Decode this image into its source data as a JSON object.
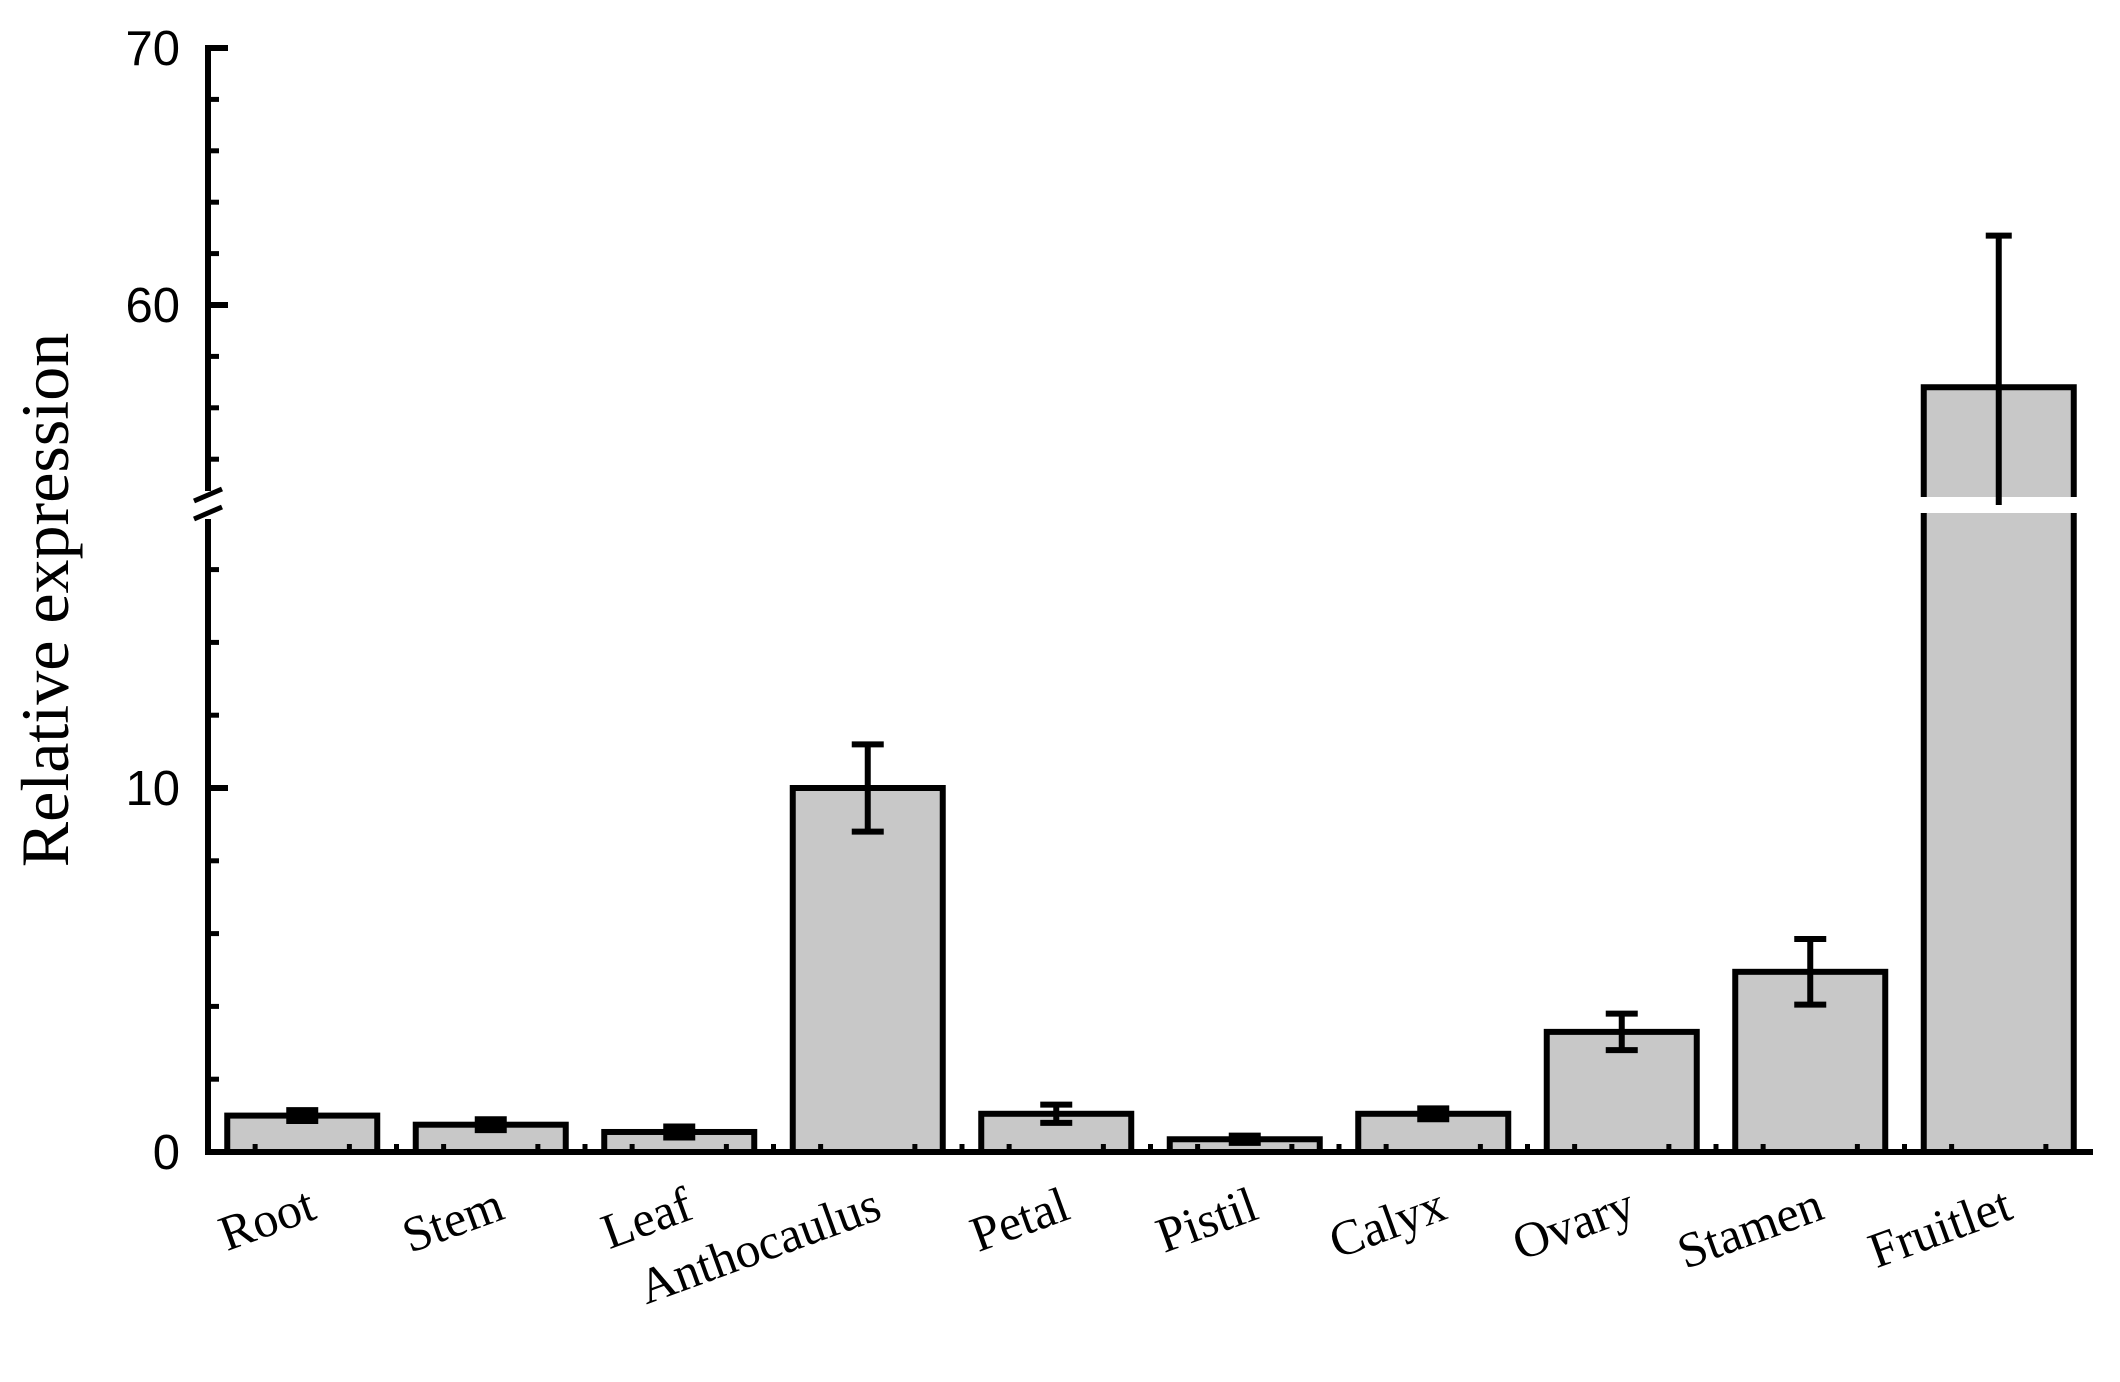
{
  "chart_data": {
    "type": "bar",
    "title": "",
    "xlabel": "",
    "ylabel": "Relative expression",
    "categories": [
      "Root",
      "Stem",
      "Leaf",
      "Anthocaulus",
      "Petal",
      "Pistil",
      "Calyx",
      "Ovary",
      "Stamen",
      "Fruitlet"
    ],
    "values": [
      1.0,
      0.75,
      0.55,
      10.0,
      1.05,
      0.35,
      1.05,
      3.3,
      4.95,
      56.8
    ],
    "errors": [
      0.15,
      0.15,
      0.15,
      1.2,
      0.25,
      0.1,
      0.15,
      0.5,
      0.9,
      5.9
    ],
    "y_axis": {
      "broken": true,
      "lower_range": [
        0,
        17
      ],
      "upper_range": [
        52.5,
        70
      ],
      "tick_labels": [
        "0",
        "10",
        "60",
        "70"
      ],
      "lower_minor_ticks": [
        2,
        4,
        6,
        8,
        12,
        14,
        16
      ],
      "upper_minor_ticks": [
        54,
        56,
        58,
        62,
        64,
        66,
        68
      ]
    },
    "bar_color": "#c8c8c8",
    "edge_color": "#000000",
    "grid": false,
    "legend": false
  }
}
